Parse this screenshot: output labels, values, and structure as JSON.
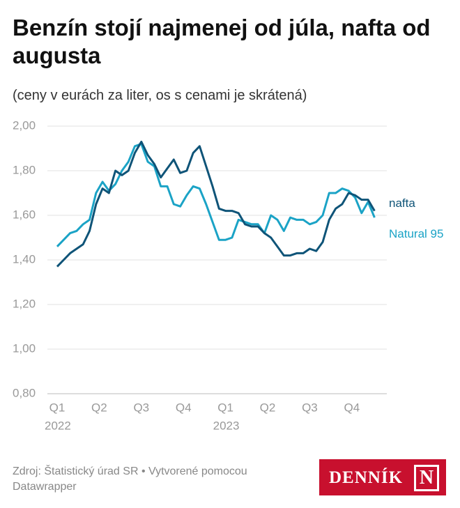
{
  "chart_data": {
    "type": "line",
    "title": "Benzín stojí najmenej od júla, nafta od augusta",
    "subtitle": "(ceny v eurách za liter, os s cenami je skrátená)",
    "x": [
      0,
      2,
      4,
      6,
      8,
      10,
      12,
      14,
      16,
      18,
      20,
      22,
      24,
      26,
      28,
      30,
      32,
      34,
      36,
      38,
      40,
      42,
      44,
      46,
      48,
      50,
      52,
      54,
      56,
      58,
      60,
      62,
      64,
      66,
      68,
      70,
      72,
      74,
      76,
      78,
      80,
      82,
      84,
      86,
      88,
      90,
      92,
      94,
      96,
      98
    ],
    "series": [
      {
        "name": "nafta",
        "color": "#0f5478",
        "values": [
          1.37,
          1.4,
          1.43,
          1.45,
          1.47,
          1.53,
          1.65,
          1.72,
          1.7,
          1.8,
          1.78,
          1.8,
          1.88,
          1.93,
          1.87,
          1.83,
          1.77,
          1.81,
          1.85,
          1.79,
          1.8,
          1.88,
          1.91,
          1.82,
          1.73,
          1.63,
          1.62,
          1.62,
          1.61,
          1.56,
          1.55,
          1.55,
          1.52,
          1.5,
          1.46,
          1.42,
          1.42,
          1.43,
          1.43,
          1.45,
          1.44,
          1.48,
          1.58,
          1.63,
          1.65,
          1.7,
          1.69,
          1.67,
          1.67,
          1.62
        ]
      },
      {
        "name": "Natural 95",
        "color": "#1ba3c6",
        "values": [
          1.46,
          1.49,
          1.52,
          1.53,
          1.56,
          1.58,
          1.7,
          1.75,
          1.71,
          1.74,
          1.8,
          1.84,
          1.91,
          1.92,
          1.84,
          1.82,
          1.73,
          1.73,
          1.65,
          1.64,
          1.69,
          1.73,
          1.72,
          1.65,
          1.57,
          1.49,
          1.49,
          1.5,
          1.58,
          1.57,
          1.56,
          1.56,
          1.52,
          1.6,
          1.58,
          1.53,
          1.59,
          1.58,
          1.58,
          1.56,
          1.57,
          1.6,
          1.7,
          1.7,
          1.72,
          1.71,
          1.68,
          1.61,
          1.66,
          1.59
        ]
      }
    ],
    "xlim": [
      0,
      99
    ],
    "xticks": [
      {
        "value": 0,
        "label": "Q1"
      },
      {
        "value": 13,
        "label": "Q2"
      },
      {
        "value": 26,
        "label": "Q3"
      },
      {
        "value": 39,
        "label": "Q4"
      },
      {
        "value": 52,
        "label": "Q1"
      },
      {
        "value": 65,
        "label": "Q2"
      },
      {
        "value": 78,
        "label": "Q3"
      },
      {
        "value": 91,
        "label": "Q4"
      }
    ],
    "x_year_labels": [
      {
        "value": 0,
        "label": "2022"
      },
      {
        "value": 52,
        "label": "2023"
      }
    ],
    "ylim": [
      0.8,
      2.0
    ],
    "yticks": [
      {
        "value": 0.8,
        "label": "0,80"
      },
      {
        "value": 1.0,
        "label": "1,00"
      },
      {
        "value": 1.2,
        "label": "1,20"
      },
      {
        "value": 1.4,
        "label": "1,40"
      },
      {
        "value": 1.6,
        "label": "1,60"
      },
      {
        "value": 1.8,
        "label": "1,80"
      },
      {
        "value": 2.0,
        "label": "2,00"
      }
    ],
    "grid": true,
    "source": "Zdroj: Štatistický úrad SR • Vytvorené pomocou Datawrapper",
    "logo_text": "DENNÍK",
    "logo_mark": "N"
  }
}
